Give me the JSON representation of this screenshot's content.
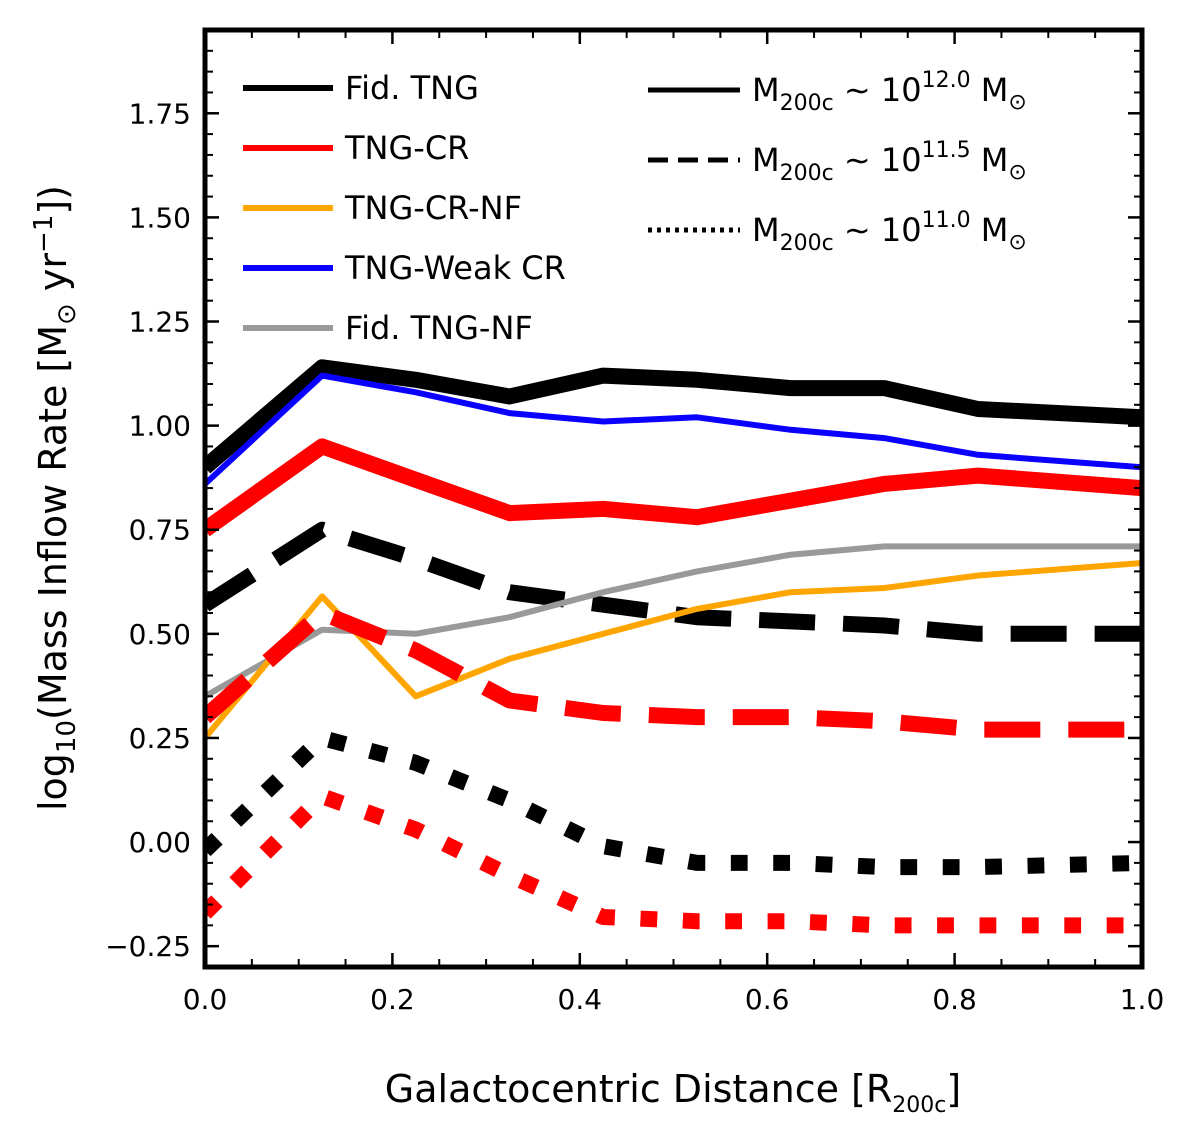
{
  "chart_data": {
    "type": "line",
    "title": "",
    "xlabel": {
      "main": "Galactocentric Distance [R",
      "sub": "200c",
      "close": "]"
    },
    "ylabel": {
      "prefix": "log",
      "prefix_sub": "10",
      "main": "(Mass Inflow Rate [M",
      "sun": "⊙",
      "unit": " yr",
      "exp": "−1",
      "close": "])"
    },
    "xlim": [
      0.0,
      1.0
    ],
    "ylim": [
      -0.3,
      1.95
    ],
    "xticks": [
      0.0,
      0.2,
      0.4,
      0.6,
      0.8,
      1.0
    ],
    "xtick_labels": [
      "0.0",
      "0.2",
      "0.4",
      "0.6",
      "0.8",
      "1.0"
    ],
    "yticks": [
      -0.25,
      0.0,
      0.25,
      0.5,
      0.75,
      1.0,
      1.25,
      1.5,
      1.75
    ],
    "ytick_labels": [
      "−0.25",
      "0.00",
      "0.25",
      "0.50",
      "0.75",
      "1.00",
      "1.25",
      "1.50",
      "1.75"
    ],
    "x": [
      0.0,
      0.125,
      0.225,
      0.325,
      0.425,
      0.525,
      0.625,
      0.725,
      0.825,
      1.0
    ],
    "series": [
      {
        "name": "Fid. TNG M200c~10^12.0",
        "color": "#000000",
        "style": "solid",
        "width_key": "thick",
        "values": [
          0.9,
          1.14,
          1.11,
          1.07,
          1.12,
          1.11,
          1.09,
          1.09,
          1.04,
          1.02
        ]
      },
      {
        "name": "TNG-Weak CR M200c~10^12.0",
        "color": "#0a00ff",
        "style": "solid",
        "width_key": "thin",
        "values": [
          0.86,
          1.12,
          1.08,
          1.03,
          1.01,
          1.02,
          0.99,
          0.97,
          0.93,
          0.9
        ]
      },
      {
        "name": "TNG-CR M200c~10^12.0",
        "color": "#ff0000",
        "style": "solid",
        "width_key": "thick",
        "values": [
          0.75,
          0.95,
          0.87,
          0.79,
          0.8,
          0.78,
          0.82,
          0.86,
          0.88,
          0.85
        ]
      },
      {
        "name": "Fid. TNG M200c~10^11.5",
        "color": "#000000",
        "style": "dashed",
        "width_key": "thick",
        "values": [
          0.57,
          0.75,
          0.68,
          0.6,
          0.57,
          0.54,
          0.53,
          0.52,
          0.5,
          0.5
        ]
      },
      {
        "name": "Fid. TNG-NF M200c~10^12.0",
        "color": "#999999",
        "style": "solid",
        "width_key": "thin",
        "values": [
          0.35,
          0.51,
          0.5,
          0.54,
          0.6,
          0.65,
          0.69,
          0.71,
          0.71,
          0.71
        ]
      },
      {
        "name": "TNG-CR-NF M200c~10^12.0",
        "color": "#ffa500",
        "style": "solid",
        "width_key": "thin",
        "values": [
          0.25,
          0.59,
          0.35,
          0.44,
          0.5,
          0.56,
          0.6,
          0.61,
          0.64,
          0.67
        ]
      },
      {
        "name": "TNG-CR M200c~10^11.5",
        "color": "#ff0000",
        "style": "dashed",
        "width_key": "thick",
        "values": [
          0.3,
          0.55,
          0.46,
          0.34,
          0.31,
          0.3,
          0.3,
          0.29,
          0.27,
          0.27
        ]
      },
      {
        "name": "Fid. TNG M200c~10^11.0",
        "color": "#000000",
        "style": "dotted",
        "width_key": "thick",
        "values": [
          -0.02,
          0.25,
          0.19,
          0.1,
          -0.01,
          -0.05,
          -0.05,
          -0.06,
          -0.06,
          -0.05
        ]
      },
      {
        "name": "TNG-CR M200c~10^11.0",
        "color": "#ff0000",
        "style": "dotted",
        "width_key": "thick",
        "values": [
          -0.17,
          0.11,
          0.03,
          -0.08,
          -0.18,
          -0.19,
          -0.19,
          -0.2,
          -0.2,
          -0.2
        ]
      }
    ],
    "legend_left": [
      {
        "label": "Fid. TNG",
        "color": "#000000"
      },
      {
        "label": "TNG-CR",
        "color": "#ff0000"
      },
      {
        "label": "TNG-CR-NF",
        "color": "#ffa500"
      },
      {
        "label": "TNG-Weak CR",
        "color": "#0a00ff"
      },
      {
        "label": "Fid. TNG-NF",
        "color": "#999999"
      }
    ],
    "legend_right": [
      {
        "style": "solid",
        "prefix": "M",
        "sub": "200c",
        "mid": " ∼ 10",
        "exp": "12.0",
        "unit": " M",
        "sun": "⊙"
      },
      {
        "style": "dashed",
        "prefix": "M",
        "sub": "200c",
        "mid": " ∼ 10",
        "exp": "11.5",
        "unit": " M",
        "sun": "⊙"
      },
      {
        "style": "dotted",
        "prefix": "M",
        "sub": "200c",
        "mid": " ∼ 10",
        "exp": "11.0",
        "unit": " M",
        "sun": "⊙"
      }
    ],
    "legend_position": "top"
  }
}
